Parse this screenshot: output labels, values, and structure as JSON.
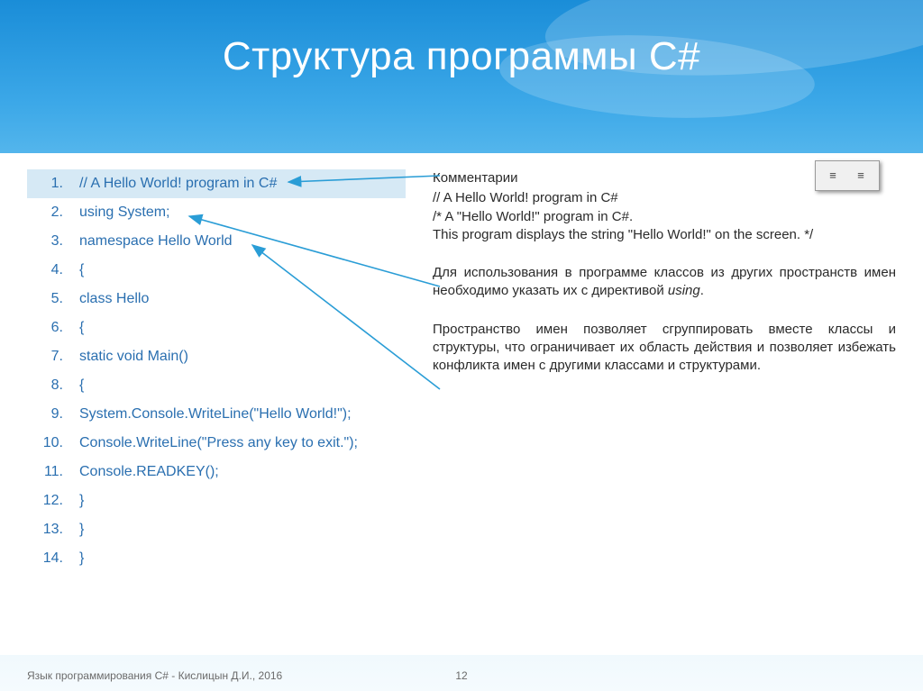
{
  "title": "Структура программы C#",
  "code_lines": [
    "// A Hello World! program in C#",
    "using System;",
    "namespace Hello World",
    "{",
    "class Hello",
    "    {",
    "static void Main()",
    "        {",
    "System.Console.WriteLine(\"Hello World!\");",
    "Console.WriteLine(\"Press any key to exit.\");",
    "Console.READKEY();",
    "        }",
    "    }",
    "}"
  ],
  "selected_line_index": 0,
  "comments": {
    "heading": "Комментарии",
    "line1": "// A Hello World! program in C#",
    "line2": "/* A \"Hello World!\" program in C#.",
    "line3": "This program displays the string \"Hello World!\" on the screen. */"
  },
  "using_text_1": "Для использования в программе классов из других пространств имен необходимо указать их с директивой ",
  "using_text_italic": "using",
  "using_text_2": ".",
  "namespace_text": "Пространство имен позволяет сгруппировать вместе классы и структуры, что ограничивает их область действия и позволяет избежать конфликта имен с другими классами и структурами.",
  "footer_author": "Язык программирования C# - Кислицын Д.И., 2016",
  "footer_page": "12",
  "arrow_color": "#2a9dd6",
  "colors": {
    "title_text": "#ffffff",
    "code_text": "#2a6fb0",
    "body_text": "#2a2a2a",
    "selected_bg": "#d6e9f5",
    "footer_text": "#6a6a6a"
  }
}
